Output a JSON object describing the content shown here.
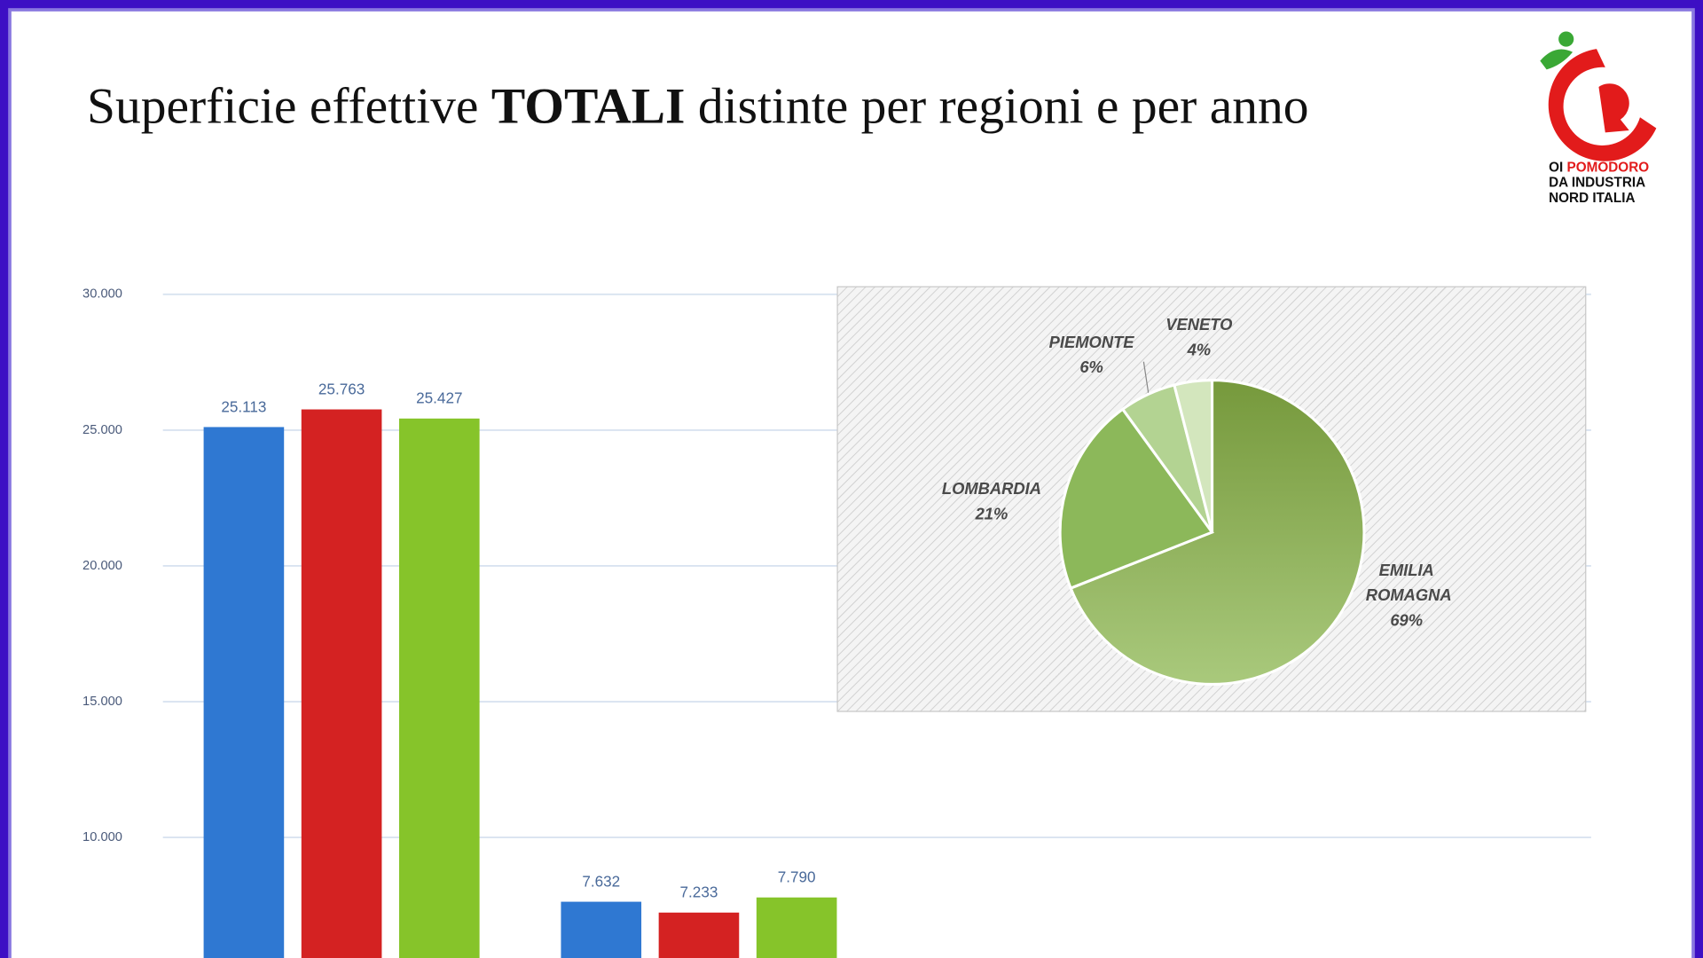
{
  "header": {
    "title": [
      "Superficie effettive ",
      "TOTALI",
      " distinte per regioni e per anno"
    ]
  },
  "logo": [
    "OI",
    "POMODORO",
    "DA INDUSTRIA",
    "NORD ITALIA"
  ],
  "chart_data": [
    {
      "type": "bar",
      "categories": [
        null,
        null
      ],
      "series": [
        {
          "color": "#2f78d2",
          "values": [
            25113,
            7632
          ],
          "value_labels": [
            "25.113",
            "7.632"
          ]
        },
        {
          "color": "#d42222",
          "values": [
            25763,
            7233
          ],
          "value_labels": [
            "25.763",
            "7.233"
          ]
        },
        {
          "color": "#86c42a",
          "values": [
            25427,
            7790
          ],
          "value_labels": [
            "25.427",
            "7.790"
          ]
        }
      ],
      "ylim": [
        5560,
        30000
      ],
      "yticks": [
        {
          "value": 10000,
          "label": "10.000"
        },
        {
          "value": 15000,
          "label": "15.000"
        },
        {
          "value": 20000,
          "label": "20.000"
        },
        {
          "value": 25000,
          "label": "25.000"
        },
        {
          "value": 30000,
          "label": "30.000"
        }
      ],
      "grid": true
    },
    {
      "type": "pie",
      "categories": [
        "EMILIA ROMAGNA",
        "LOMBARDIA",
        "PIEMONTE",
        "VENETO"
      ],
      "values": [
        69,
        21,
        6,
        4
      ],
      "value_labels": [
        "69%",
        "21%",
        "6%",
        "4%"
      ],
      "colors": [
        "#8fb456",
        "#8cb85a",
        "#b3d392",
        "#d3e6bd"
      ]
    }
  ]
}
